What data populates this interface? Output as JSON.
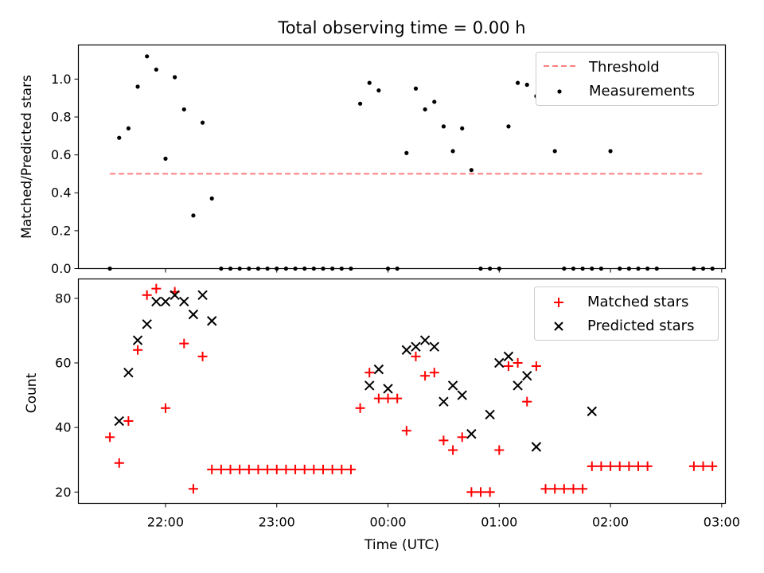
{
  "chart_data": [
    {
      "type": "scatter",
      "title": "Total observing time = 0.00 h",
      "xlabel": "",
      "ylabel": "Matched/Predicted stars",
      "xlim": [
        "21:13",
        "03:02"
      ],
      "ylim": [
        0,
        1.18
      ],
      "yticks": [
        "0.0",
        "0.2",
        "0.4",
        "0.6",
        "0.8",
        "1.0"
      ],
      "legend": {
        "position": "top-right"
      },
      "series": [
        {
          "name": "Threshold",
          "style": "dashed-line",
          "color": "#ff7f7f",
          "x": [
            "21:30",
            "02:50"
          ],
          "y": [
            0.5,
            0.5
          ]
        },
        {
          "name": "Measurements",
          "style": "dot",
          "color": "#000000",
          "x": [
            "21:30",
            "21:35",
            "21:40",
            "21:45",
            "21:50",
            "21:55",
            "22:00",
            "22:05",
            "22:10",
            "22:15",
            "22:20",
            "22:25",
            "22:30",
            "22:35",
            "22:40",
            "22:45",
            "22:50",
            "22:55",
            "23:00",
            "23:05",
            "23:10",
            "23:15",
            "23:20",
            "23:25",
            "23:30",
            "23:35",
            "23:40",
            "23:45",
            "23:50",
            "23:55",
            "00:00",
            "00:05",
            "00:10",
            "00:15",
            "00:20",
            "00:25",
            "00:30",
            "00:35",
            "00:40",
            "00:45",
            "00:50",
            "00:55",
            "01:00",
            "01:05",
            "01:10",
            "01:15",
            "01:20",
            "01:25",
            "01:30",
            "01:35",
            "01:40",
            "01:45",
            "01:50",
            "01:55",
            "02:00",
            "02:05",
            "02:10",
            "02:15",
            "02:20",
            "02:25",
            "02:30",
            "02:35",
            "02:40",
            "02:45",
            "02:50",
            "02:55"
          ],
          "y": [
            0.0,
            0.69,
            0.74,
            0.96,
            1.12,
            1.05,
            0.58,
            1.01,
            0.84,
            0.28,
            0.77,
            0.37,
            0.0,
            0.0,
            0.0,
            0.0,
            0.0,
            0.0,
            0.0,
            0.0,
            0.0,
            0.0,
            0.0,
            0.0,
            0.0,
            0.0,
            0.0,
            0.87,
            0.98,
            0.94,
            0.0,
            0.0,
            0.61,
            0.95,
            0.84,
            0.88,
            0.75,
            0.62,
            0.74,
            0.52,
            0.0,
            0.0,
            0.0,
            0.75,
            0.98,
            0.97,
            0.91,
            1.05,
            0.62,
            0.0,
            0.0,
            0.0,
            0.0,
            0.0,
            0.62,
            0.0,
            0.0,
            0.0,
            0.0,
            0.0,
            null,
            null,
            null,
            0.0,
            0.0,
            0.0
          ]
        }
      ]
    },
    {
      "type": "scatter",
      "title": "",
      "xlabel": "Time (UTC)",
      "ylabel": "Count",
      "xlim": [
        "21:13",
        "03:02"
      ],
      "ylim": [
        16.5,
        86
      ],
      "xticks": [
        "22:00",
        "23:00",
        "00:00",
        "01:00",
        "02:00",
        "03:00"
      ],
      "yticks": [
        "20",
        "40",
        "60",
        "80"
      ],
      "legend": {
        "position": "top-right"
      },
      "series": [
        {
          "name": "Matched stars",
          "marker": "plus",
          "color": "#ff0000",
          "x": [
            "21:30",
            "21:35",
            "21:40",
            "21:45",
            "21:50",
            "21:55",
            "22:00",
            "22:05",
            "22:10",
            "22:15",
            "22:20",
            "22:25",
            "22:30",
            "22:35",
            "22:40",
            "22:45",
            "22:50",
            "22:55",
            "23:00",
            "23:05",
            "23:10",
            "23:15",
            "23:20",
            "23:25",
            "23:30",
            "23:35",
            "23:40",
            "23:45",
            "23:50",
            "23:55",
            "00:00",
            "00:05",
            "00:10",
            "00:15",
            "00:20",
            "00:25",
            "00:30",
            "00:35",
            "00:40",
            "00:45",
            "00:50",
            "00:55",
            "01:00",
            "01:05",
            "01:10",
            "01:15",
            "01:20",
            "01:25",
            "01:30",
            "01:35",
            "01:40",
            "01:45",
            "01:50",
            "01:55",
            "02:00",
            "02:05",
            "02:10",
            "02:15",
            "02:20",
            "02:25",
            "02:30",
            "02:35",
            "02:40",
            "02:45",
            "02:50",
            "02:55"
          ],
          "y": [
            37,
            29,
            42,
            64,
            81,
            83,
            46,
            82,
            66,
            21,
            62,
            27,
            27,
            27,
            27,
            27,
            27,
            27,
            27,
            27,
            27,
            27,
            27,
            27,
            27,
            27,
            27,
            46,
            57,
            49,
            49,
            49,
            39,
            62,
            56,
            57,
            36,
            33,
            37,
            20,
            20,
            20,
            33,
            59,
            60,
            48,
            59,
            21,
            21,
            21,
            21,
            21,
            28,
            28,
            28,
            28,
            28,
            28,
            28,
            null,
            null,
            null,
            null,
            28,
            28,
            28
          ]
        },
        {
          "name": "Predicted stars",
          "marker": "x",
          "color": "#000000",
          "x": [
            "21:35",
            "21:40",
            "21:45",
            "21:50",
            "21:55",
            "22:00",
            "22:05",
            "22:10",
            "22:15",
            "22:20",
            "22:25",
            "23:50",
            "23:55",
            "00:00",
            "00:10",
            "00:15",
            "00:20",
            "00:25",
            "00:30",
            "00:35",
            "00:40",
            "00:45",
            "00:55",
            "01:00",
            "01:05",
            "01:10",
            "01:15",
            "01:20",
            "01:50"
          ],
          "y": [
            42,
            57,
            67,
            72,
            79,
            79,
            81,
            79,
            75,
            81,
            73,
            53,
            58,
            52,
            64,
            65,
            67,
            65,
            48,
            53,
            50,
            38,
            44,
            60,
            62,
            53,
            56,
            34,
            45
          ]
        }
      ]
    }
  ]
}
